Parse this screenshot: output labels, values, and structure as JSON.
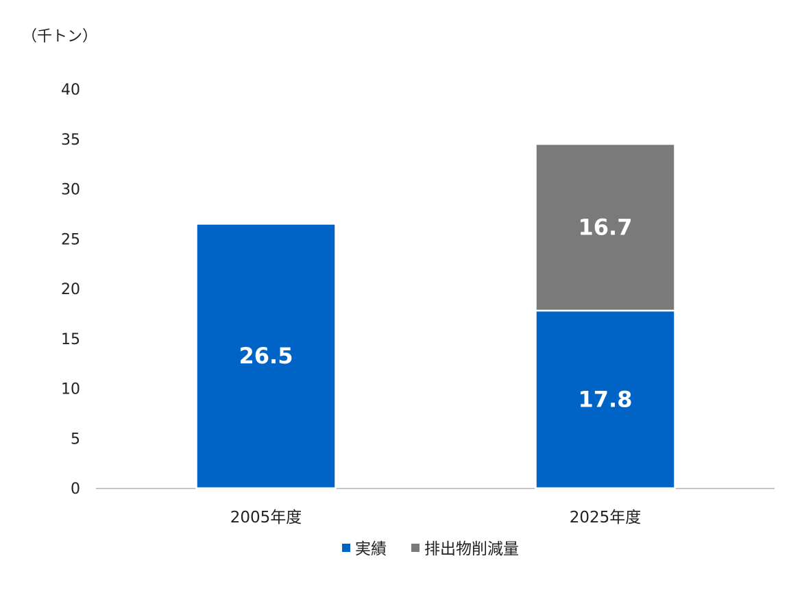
{
  "chart_data": {
    "type": "stacked-bar",
    "unit_label": "（千トン）",
    "categories": [
      "2005年度",
      "2025年度"
    ],
    "series": [
      {
        "name": "実績",
        "values": [
          26.5,
          17.8
        ],
        "color": "#0063C6"
      },
      {
        "name": "排出物削減量",
        "values": [
          null,
          16.7
        ],
        "color": "#7A7A7A"
      }
    ],
    "data_labels": [
      {
        "category": 0,
        "series": 0,
        "text": "26.5"
      },
      {
        "category": 1,
        "series": 0,
        "text": "17.8"
      },
      {
        "category": 1,
        "series": 1,
        "text": "16.7"
      }
    ],
    "ylim": [
      0,
      40
    ],
    "yticks": [
      "0",
      "5",
      "10",
      "15",
      "20",
      "25",
      "30",
      "35",
      "40"
    ],
    "grid": false,
    "legend_position": "bottom"
  }
}
